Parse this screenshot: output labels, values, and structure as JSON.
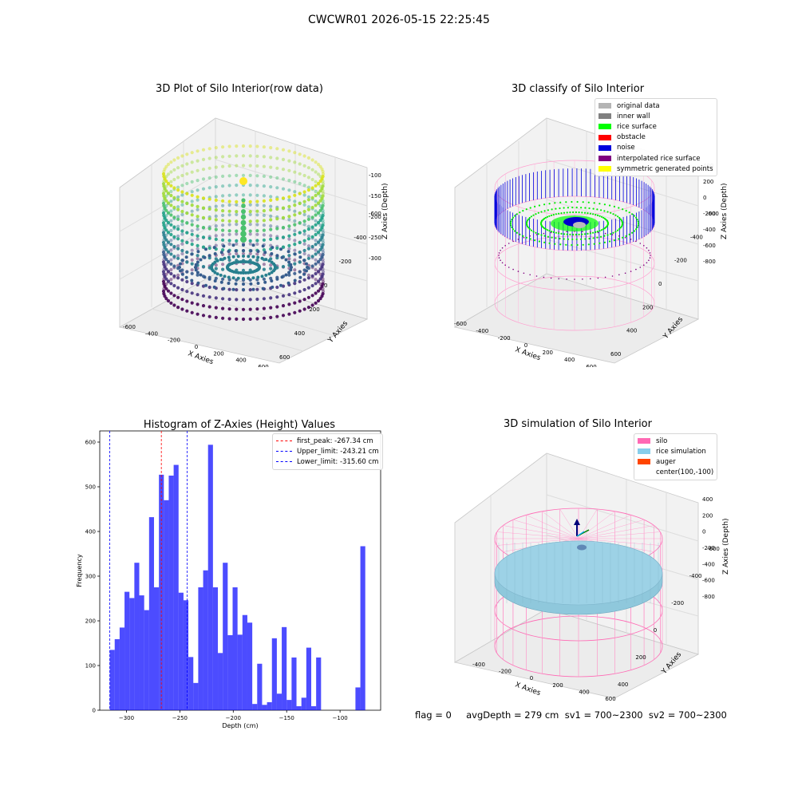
{
  "suptitle": "CWCWR01 2026-05-15 22:25:45",
  "status_line": "flag = 0     avgDepth = 279 cm  sv1 = 700~2300  sv2 = 700~2300",
  "panels": {
    "raw": {
      "title": "3D Plot of Silo Interior(row data)",
      "xlabel": "X Axies",
      "ylabel": "Y Axies",
      "zlabel": "Z Axies (Depth)",
      "xticks": [
        "-600",
        "-400",
        "-200",
        "0",
        "200",
        "400",
        "600"
      ],
      "yticks": [
        "-600",
        "-400",
        "-200",
        "0",
        "200",
        "400",
        "600"
      ],
      "zticks": [
        "-100",
        "-150",
        "-200",
        "-250",
        "-300"
      ]
    },
    "classify": {
      "title": "3D classify of Silo Interior",
      "xlabel": "X Axies",
      "ylabel": "Y Axies",
      "zlabel": "Z Axies (Depth)",
      "xticks": [
        "-600",
        "-400",
        "-200",
        "0",
        "200",
        "400",
        "600"
      ],
      "yticks": [
        "-600",
        "-400",
        "-200",
        "0",
        "200",
        "400",
        "600"
      ],
      "zticks": [
        "400",
        "200",
        "0",
        "-200",
        "-400",
        "-600",
        "-800"
      ],
      "legend": [
        {
          "label": "original data",
          "color": "#b4b4b4"
        },
        {
          "label": "inner wall",
          "color": "#808080"
        },
        {
          "label": "rice surface",
          "color": "#00ff00"
        },
        {
          "label": "obstacle",
          "color": "#ff0000"
        },
        {
          "label": "noise",
          "color": "#0000dd"
        },
        {
          "label": "interpolated rice surface",
          "color": "#800080"
        },
        {
          "label": "symmetric generated points",
          "color": "#ffff00"
        }
      ]
    },
    "simulation": {
      "title": "3D simulation of Silo Interior",
      "xlabel": "X Axies",
      "ylabel": "Y Axies",
      "zlabel": "Z Axies (Depth)",
      "xticks": [
        "-400",
        "-200",
        "0",
        "200",
        "400",
        "600"
      ],
      "yticks": [
        "-600",
        "-400",
        "-200",
        "0",
        "200",
        "400"
      ],
      "zticks": [
        "400",
        "200",
        "0",
        "-200",
        "-400",
        "-600",
        "-800"
      ],
      "legend": [
        {
          "label": "silo",
          "color": "#ff69b4"
        },
        {
          "label": "rice simulation",
          "color": "#87ceeb"
        },
        {
          "label": "auger",
          "color": "#ff4500"
        },
        {
          "label": "center(100,-100)",
          "color": "none"
        }
      ]
    }
  },
  "chart_data": [
    {
      "type": "bar",
      "title": "Histogram of Z-Axies (Height) Values",
      "xlabel": "Depth (cm)",
      "ylabel": "Frequency",
      "xlim": [
        -325,
        -62
      ],
      "ylim": [
        0,
        625
      ],
      "xticks": [
        -300,
        -250,
        -200,
        -150,
        -100
      ],
      "yticks": [
        0,
        100,
        200,
        300,
        400,
        500,
        600
      ],
      "bar_color": "#0000ff",
      "bins": [
        {
          "x0": -315.6,
          "x1": -311.0,
          "value": 135
        },
        {
          "x0": -311.0,
          "x1": -306.4,
          "value": 159
        },
        {
          "x0": -306.4,
          "x1": -301.8,
          "value": 185
        },
        {
          "x0": -301.8,
          "x1": -297.2,
          "value": 265
        },
        {
          "x0": -297.2,
          "x1": -292.6,
          "value": 251
        },
        {
          "x0": -292.6,
          "x1": -288.0,
          "value": 330
        },
        {
          "x0": -288.0,
          "x1": -283.4,
          "value": 257
        },
        {
          "x0": -283.4,
          "x1": -278.8,
          "value": 224
        },
        {
          "x0": -278.8,
          "x1": -274.2,
          "value": 432
        },
        {
          "x0": -274.2,
          "x1": -269.6,
          "value": 275
        },
        {
          "x0": -269.6,
          "x1": -265.0,
          "value": 527
        },
        {
          "x0": -265.0,
          "x1": -260.4,
          "value": 470
        },
        {
          "x0": -260.4,
          "x1": -255.8,
          "value": 525
        },
        {
          "x0": -255.8,
          "x1": -251.2,
          "value": 549
        },
        {
          "x0": -251.2,
          "x1": -246.6,
          "value": 263
        },
        {
          "x0": -246.6,
          "x1": -242.0,
          "value": 246
        },
        {
          "x0": -242.0,
          "x1": -237.4,
          "value": 119
        },
        {
          "x0": -237.4,
          "x1": -232.8,
          "value": 61
        },
        {
          "x0": -232.8,
          "x1": -228.2,
          "value": 275
        },
        {
          "x0": -228.2,
          "x1": -223.6,
          "value": 313
        },
        {
          "x0": -223.6,
          "x1": -219.0,
          "value": 594
        },
        {
          "x0": -219.0,
          "x1": -214.4,
          "value": 275
        },
        {
          "x0": -214.4,
          "x1": -209.8,
          "value": 128
        },
        {
          "x0": -209.8,
          "x1": -205.2,
          "value": 330
        },
        {
          "x0": -205.2,
          "x1": -200.6,
          "value": 168
        },
        {
          "x0": -200.6,
          "x1": -196.0,
          "value": 275
        },
        {
          "x0": -196.0,
          "x1": -191.4,
          "value": 169
        },
        {
          "x0": -191.4,
          "x1": -186.8,
          "value": 213
        },
        {
          "x0": -186.8,
          "x1": -182.2,
          "value": 196
        },
        {
          "x0": -182.2,
          "x1": -177.6,
          "value": 14
        },
        {
          "x0": -177.6,
          "x1": -173.0,
          "value": 104
        },
        {
          "x0": -173.0,
          "x1": -168.4,
          "value": 12
        },
        {
          "x0": -168.4,
          "x1": -163.8,
          "value": 18
        },
        {
          "x0": -163.8,
          "x1": -159.2,
          "value": 161
        },
        {
          "x0": -159.2,
          "x1": -154.6,
          "value": 37
        },
        {
          "x0": -154.6,
          "x1": -150.0,
          "value": 186
        },
        {
          "x0": -150.0,
          "x1": -145.4,
          "value": 23
        },
        {
          "x0": -145.4,
          "x1": -140.8,
          "value": 118
        },
        {
          "x0": -140.8,
          "x1": -136.2,
          "value": 9
        },
        {
          "x0": -136.2,
          "x1": -131.6,
          "value": 28
        },
        {
          "x0": -131.6,
          "x1": -127.0,
          "value": 140
        },
        {
          "x0": -127.0,
          "x1": -122.4,
          "value": 9
        },
        {
          "x0": -122.4,
          "x1": -117.8,
          "value": 118
        },
        {
          "x0": -117.8,
          "x1": -113.2,
          "value": 0
        },
        {
          "x0": -113.2,
          "x1": -108.6,
          "value": 0
        },
        {
          "x0": -108.6,
          "x1": -104.0,
          "value": 0
        },
        {
          "x0": -104.0,
          "x1": -99.4,
          "value": 0
        },
        {
          "x0": -99.4,
          "x1": -94.8,
          "value": 0
        },
        {
          "x0": -94.8,
          "x1": -90.2,
          "value": 0
        },
        {
          "x0": -90.2,
          "x1": -85.6,
          "value": 0
        },
        {
          "x0": -85.6,
          "x1": -81.0,
          "value": 51
        },
        {
          "x0": -81.0,
          "x1": -76.4,
          "value": 367
        }
      ],
      "vlines": [
        {
          "label": "first_peak: -267.34 cm",
          "x": -267.34,
          "color": "#ff0000"
        },
        {
          "label": "Upper_limit: -243.21 cm",
          "x": -243.21,
          "color": "#0000ff"
        },
        {
          "label": "Lower_limit: -315.60 cm",
          "x": -315.6,
          "color": "#0000ff"
        }
      ]
    }
  ]
}
